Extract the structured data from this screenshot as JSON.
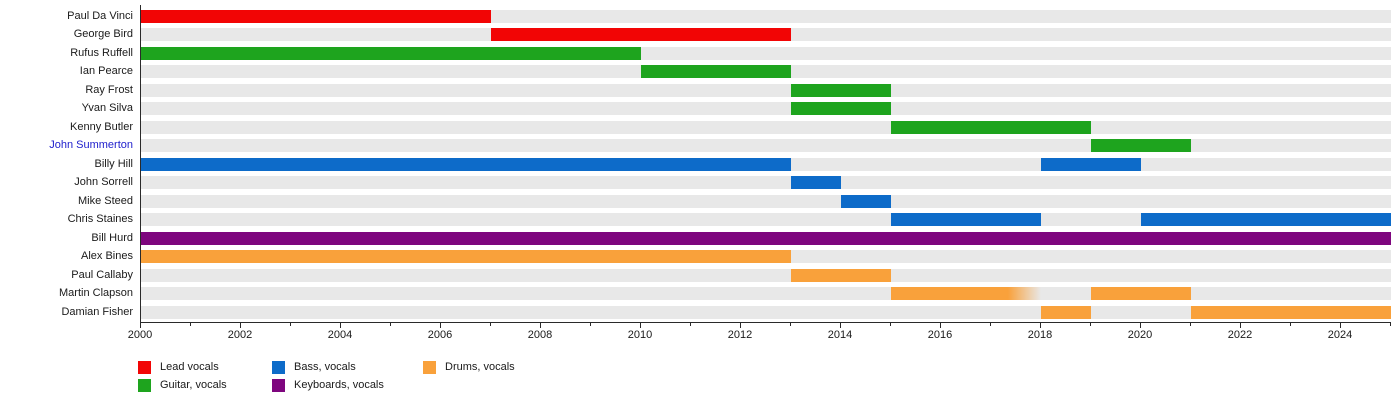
{
  "chart_data": {
    "type": "timeline-gantt",
    "title": "",
    "x_axis": {
      "min": 2000,
      "max": 2025,
      "labeled_ticks": [
        2000,
        2002,
        2004,
        2006,
        2008,
        2010,
        2012,
        2014,
        2016,
        2018,
        2020,
        2022,
        2024
      ],
      "minor_tick_every_years": 1,
      "pixels_per_year": 50
    },
    "roles": {
      "lead": {
        "label": "Lead vocals",
        "color": "#f20505"
      },
      "guitar": {
        "label": "Guitar, vocals",
        "color": "#1ea41e"
      },
      "bass": {
        "label": "Bass, vocals",
        "color": "#0d6bc9"
      },
      "keyboards": {
        "label": "Keyboards, vocals",
        "color": "#7e067e"
      },
      "drums": {
        "label": "Drums, vocals",
        "color": "#f9a13b"
      }
    },
    "members": [
      {
        "name": "Paul Da Vinci",
        "role": "lead",
        "link": false,
        "segments": [
          {
            "start": 2000,
            "end": 2007
          }
        ]
      },
      {
        "name": "George Bird",
        "role": "lead",
        "link": false,
        "segments": [
          {
            "start": 2007,
            "end": 2013
          }
        ]
      },
      {
        "name": "Rufus Ruffell",
        "role": "guitar",
        "link": false,
        "segments": [
          {
            "start": 2000,
            "end": 2010
          }
        ]
      },
      {
        "name": "Ian Pearce",
        "role": "guitar",
        "link": false,
        "segments": [
          {
            "start": 2010,
            "end": 2013
          }
        ]
      },
      {
        "name": "Ray Frost",
        "role": "guitar",
        "link": false,
        "segments": [
          {
            "start": 2013,
            "end": 2015
          }
        ]
      },
      {
        "name": "Yvan Silva",
        "role": "guitar",
        "link": false,
        "segments": [
          {
            "start": 2013,
            "end": 2015
          }
        ]
      },
      {
        "name": "Kenny Butler",
        "role": "guitar",
        "link": false,
        "segments": [
          {
            "start": 2015,
            "end": 2019
          }
        ]
      },
      {
        "name": "John Summerton",
        "role": "guitar",
        "link": true,
        "segments": [
          {
            "start": 2019,
            "end": 2021
          }
        ]
      },
      {
        "name": "Billy Hill",
        "role": "bass",
        "link": false,
        "segments": [
          {
            "start": 2000,
            "end": 2013
          },
          {
            "start": 2018,
            "end": 2020
          }
        ]
      },
      {
        "name": "John Sorrell",
        "role": "bass",
        "link": false,
        "segments": [
          {
            "start": 2013,
            "end": 2014
          }
        ]
      },
      {
        "name": "Mike Steed",
        "role": "bass",
        "link": false,
        "segments": [
          {
            "start": 2014,
            "end": 2015
          }
        ]
      },
      {
        "name": "Chris Staines",
        "role": "bass",
        "link": false,
        "segments": [
          {
            "start": 2015,
            "end": 2018
          },
          {
            "start": 2020,
            "end": 2025
          }
        ]
      },
      {
        "name": "Bill Hurd",
        "role": "keyboards",
        "link": false,
        "segments": [
          {
            "start": 2000,
            "end": 2025
          }
        ]
      },
      {
        "name": "Alex Bines",
        "role": "drums",
        "link": false,
        "segments": [
          {
            "start": 2000,
            "end": 2013
          }
        ]
      },
      {
        "name": "Paul Callaby",
        "role": "drums",
        "link": false,
        "segments": [
          {
            "start": 2013,
            "end": 2015
          }
        ]
      },
      {
        "name": "Martin Clapson",
        "role": "drums",
        "link": false,
        "segments": [
          {
            "start": 2015,
            "end": 2018,
            "fade_out": true
          },
          {
            "start": 2019,
            "end": 2021
          }
        ]
      },
      {
        "name": "Damian Fisher",
        "role": "drums",
        "link": false,
        "segments": [
          {
            "start": 2018,
            "end": 2019
          },
          {
            "start": 2021,
            "end": 2025
          }
        ]
      }
    ],
    "legend": [
      {
        "role": "lead",
        "col": 0,
        "row": 0
      },
      {
        "role": "guitar",
        "col": 0,
        "row": 1
      },
      {
        "role": "bass",
        "col": 1,
        "row": 0
      },
      {
        "role": "keyboards",
        "col": 1,
        "row": 1
      },
      {
        "role": "drums",
        "col": 2,
        "row": 0
      }
    ],
    "styles": {
      "track_color": "#e8e8e8",
      "axis_color": "#2a2a2a",
      "label_color": "#1a1a1a",
      "link_color": "#1d1dcc",
      "background": "#ffffff"
    }
  }
}
